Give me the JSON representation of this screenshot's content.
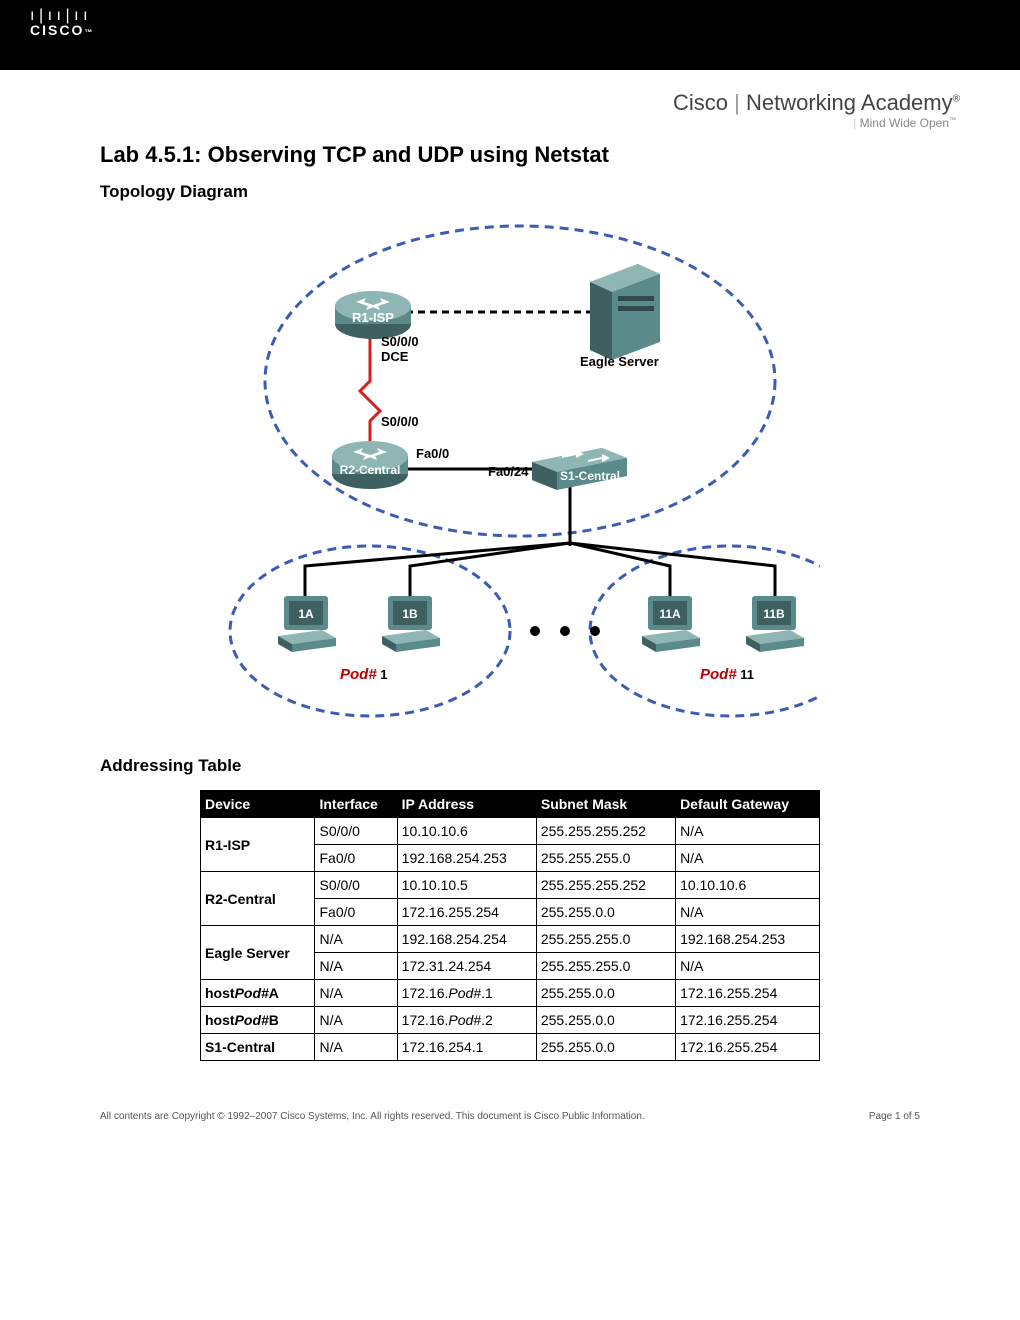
{
  "header": {
    "brand_left": "Cisco",
    "brand_right": "Networking Academy",
    "tagline": "Mind Wide Open"
  },
  "title": "Lab 4.5.1: Observing TCP and UDP using Netstat",
  "section_topology": "Topology Diagram",
  "section_table": "Addressing Table",
  "diagram": {
    "type": "network",
    "colors": {
      "dash_blue": "#3b5bb5",
      "red_link": "#d91e1e",
      "device_fill": "#5a8a8a",
      "device_light": "#8fb5b5",
      "device_dark": "#3e6060",
      "switch_fill": "#5a9090",
      "pc_screen": "#486b6b",
      "pod_red": "#b00020"
    },
    "nodes": {
      "r1": "R1-ISP",
      "r2": "R2-Central",
      "server": "Eagle Server",
      "switch": "S1-Central",
      "pc1a": "1A",
      "pc1b": "1B",
      "pc11a": "11A",
      "pc11b": "11B",
      "pod1": "Pod#",
      "pod1n": " 1",
      "pod11": "Pod#",
      "pod11n": " 11"
    },
    "labels": {
      "s000_dce": "S0/0/0\nDCE",
      "s000": "S0/0/0",
      "fa00": "Fa0/0",
      "fa024": "Fa0/24"
    }
  },
  "table": {
    "columns": [
      "Device",
      "Interface",
      "IP Address",
      "Subnet Mask",
      "Default Gateway"
    ],
    "rows": [
      {
        "device": "R1-ISP",
        "rowspan": 2,
        "cells": [
          "S0/0/0",
          "10.10.10.6",
          "255.255.255.252",
          "N/A"
        ]
      },
      {
        "cells": [
          "Fa0/0",
          "192.168.254.253",
          "255.255.255.0",
          "N/A"
        ]
      },
      {
        "device": "R2-Central",
        "rowspan": 2,
        "cells": [
          "S0/0/0",
          "10.10.10.5",
          "255.255.255.252",
          "10.10.10.6"
        ]
      },
      {
        "cells": [
          "Fa0/0",
          "172.16.255.254",
          "255.255.0.0",
          "N/A"
        ]
      },
      {
        "device": "Eagle Server",
        "rowspan": 2,
        "cells": [
          "N/A",
          "192.168.254.254",
          "255.255.255.0",
          "192.168.254.253"
        ]
      },
      {
        "cells": [
          "N/A",
          "172.31.24.254",
          "255.255.255.0",
          "N/A"
        ]
      },
      {
        "device_html": "host<i>Pod#</i><b>A</b>",
        "rowspan": 1,
        "cells_html": [
          "N/A",
          "172.16.<i>Pod#</i>.1",
          "255.255.0.0",
          "172.16.255.254"
        ]
      },
      {
        "device_html": "host<i>Pod#</i><b>B</b>",
        "rowspan": 1,
        "cells_html": [
          "N/A",
          "172.16.<i>Pod#</i>.2",
          "255.255.0.0",
          "172.16.255.254"
        ]
      },
      {
        "device": "S1-Central",
        "rowspan": 1,
        "cells": [
          "N/A",
          "172.16.254.1",
          "255.255.0.0",
          "172.16.255.254"
        ]
      }
    ]
  },
  "footer": {
    "copyright": "All contents are Copyright © 1992–2007 Cisco Systems, Inc. All rights reserved. This document is Cisco Public Information.",
    "page": "Page 1 of 5"
  }
}
